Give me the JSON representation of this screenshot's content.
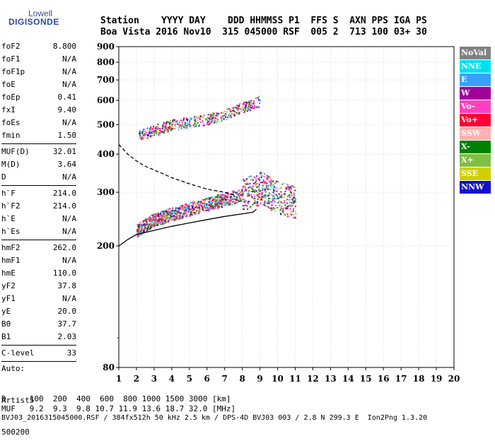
{
  "logo": {
    "line1": "Lowell",
    "line2": "DIGISONDE"
  },
  "header": {
    "line1": "Station    YYYY DAY    DDD HHMMSS P1  FFS S  AXN PPS IGA PS",
    "line2": "Boa Vista 2016 Nov10  315 045000 RSF  005 2  713 100 03+ 30"
  },
  "params": [
    {
      "name": "foF2",
      "value": "8.800"
    },
    {
      "name": "foF1",
      "value": "N/A"
    },
    {
      "name": "foF1p",
      "value": "N/A"
    },
    {
      "name": "foE",
      "value": "N/A"
    },
    {
      "name": "foEp",
      "value": "0.41"
    },
    {
      "name": "fxI",
      "value": "9.40"
    },
    {
      "name": "foEs",
      "value": "N/A"
    },
    {
      "name": "fmin",
      "value": "1.50"
    },
    {
      "sep": true
    },
    {
      "name": "MUF(D)",
      "value": "32.01"
    },
    {
      "name": "M(D)",
      "value": "3.64"
    },
    {
      "name": "D",
      "value": "N/A"
    },
    {
      "sep": true
    },
    {
      "name": "h`F",
      "value": "214.0"
    },
    {
      "name": "h`F2",
      "value": "214.0"
    },
    {
      "name": "h`E",
      "value": "N/A"
    },
    {
      "name": "h`Es",
      "value": "N/A"
    },
    {
      "sep": true
    },
    {
      "name": "hmF2",
      "value": "262.0"
    },
    {
      "name": "hmF1",
      "value": "N/A"
    },
    {
      "name": "hmE",
      "value": "110.0"
    },
    {
      "name": "yF2",
      "value": "37.8"
    },
    {
      "name": "yF1",
      "value": "N/A"
    },
    {
      "name": "yE",
      "value": "20.0"
    },
    {
      "name": "B0",
      "value": "37.7"
    },
    {
      "name": "B1",
      "value": "2.03"
    },
    {
      "sep": true
    },
    {
      "name": "C-level",
      "value": "33"
    },
    {
      "sep": true
    }
  ],
  "auto": {
    "line1": "Auto:",
    "line2": "Artist5",
    "line3": "500200"
  },
  "footer": {
    "line1": "D     100  200  400  600  800 1000 1500 3000 [km]",
    "line2": "MUF   9.2  9.3  9.8 10.7 11.9 13.6 18.7 32.0 [MHz]",
    "line3": "BVJ03_2016315045000.RSF / 384fx512h 50 kHz 2.5 km / DPS-4D BVJ03 003 / 2.8 N 299.3 E  Ion2Png 1.3.20"
  },
  "legend": [
    {
      "label": "NoVal",
      "color": "#808080"
    },
    {
      "label": "NNE",
      "color": "#00e0f0"
    },
    {
      "label": "E",
      "color": "#3aa0ff"
    },
    {
      "label": "W",
      "color": "#a0009a"
    },
    {
      "label": "Vo-",
      "color": "#ff40c0"
    },
    {
      "label": "Vo+",
      "color": "#ff0030"
    },
    {
      "label": "SSW",
      "color": "#ffb0b0"
    },
    {
      "label": "X-",
      "color": "#008000"
    },
    {
      "label": "X+",
      "color": "#80c040"
    },
    {
      "label": "SSE",
      "color": "#d0d000"
    },
    {
      "label": "NNW",
      "color": "#1010d0"
    }
  ],
  "chart_data": {
    "type": "scatter",
    "xlabel": "",
    "ylabel": "",
    "xlim": [
      1,
      20
    ],
    "ylim": [
      80,
      900
    ],
    "x_ticks": [
      "1",
      "2",
      "3",
      "4",
      "5",
      "6",
      "7",
      "8",
      "9",
      "10",
      "11",
      "12",
      "13",
      "14",
      "15",
      "16",
      "17",
      "18",
      "19",
      "20"
    ],
    "y_ticks": [
      "80",
      "200",
      "300",
      "400",
      "500",
      "600",
      "700",
      "800",
      "900"
    ],
    "y_scale": "log",
    "grid": true,
    "legend_position": "right",
    "series": [
      {
        "type": "dashed-curve",
        "x": [
          1.0,
          1.5,
          2.0,
          2.5,
          3.0,
          3.5,
          4.0,
          5.0,
          6.0,
          7.0,
          7.5
        ],
        "y": [
          430,
          400,
          380,
          365,
          355,
          345,
          335,
          320,
          307,
          300,
          295
        ]
      },
      {
        "type": "solid-curve",
        "x": [
          1.0,
          1.5,
          2.0,
          3.0,
          4.0,
          5.0,
          6.0,
          7.0,
          8.0,
          8.6,
          8.8
        ],
        "y": [
          200,
          210,
          218,
          225,
          232,
          238,
          244,
          250,
          255,
          258,
          264
        ]
      },
      {
        "type": "echo-trace",
        "x": [
          2.0,
          3.0,
          4.0,
          5.0,
          6.0,
          7.0,
          8.0,
          9.0,
          10.0,
          11.0
        ],
        "y": [
          225,
          245,
          255,
          265,
          275,
          285,
          295,
          310,
          290,
          280
        ]
      },
      {
        "type": "echo-trace",
        "x": [
          2.0,
          3.0,
          4.0,
          5.0,
          6.0,
          7.0,
          8.0,
          9.0
        ],
        "y": [
          460,
          480,
          500,
          510,
          520,
          540,
          570,
          600
        ]
      }
    ]
  }
}
